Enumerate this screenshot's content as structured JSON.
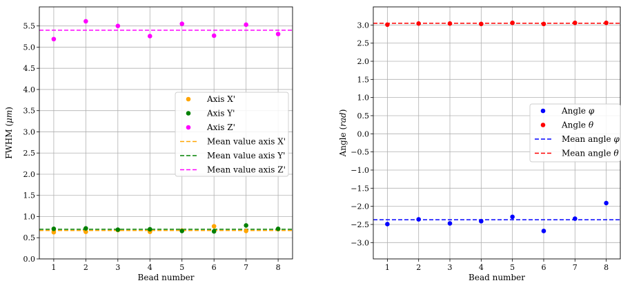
{
  "chart_data": [
    {
      "type": "scatter",
      "xlabel": "Bead number",
      "ylabel_prefix": "FWHM (",
      "ylabel_unit": "μm",
      "ylabel_suffix": ")",
      "x": [
        1,
        2,
        3,
        4,
        5,
        6,
        7,
        8
      ],
      "xticks": [
        "1",
        "2",
        "3",
        "4",
        "5",
        "6",
        "7",
        "8"
      ],
      "xlim": [
        0.55,
        8.45
      ],
      "ylim": [
        0.0,
        5.95
      ],
      "yticks": [
        "0.0",
        "0.5",
        "1.0",
        "1.5",
        "2.0",
        "2.5",
        "3.0",
        "3.5",
        "4.0",
        "4.5",
        "5.0",
        "5.5"
      ],
      "grid": true,
      "legend_position": "center-right",
      "series": [
        {
          "name": "Axis X'",
          "color": "#ffa500",
          "values": [
            0.63,
            0.64,
            0.68,
            0.64,
            0.67,
            0.77,
            0.66,
            0.7
          ]
        },
        {
          "name": "Axis Y'",
          "color": "#008000",
          "values": [
            0.71,
            0.72,
            0.69,
            0.7,
            0.66,
            0.65,
            0.79,
            0.71
          ]
        },
        {
          "name": "Axis Z'",
          "color": "#ff00ff",
          "values": [
            5.19,
            5.61,
            5.5,
            5.26,
            5.55,
            5.27,
            5.53,
            5.31
          ]
        }
      ],
      "mean_lines": [
        {
          "name": "Mean value axis X'",
          "color": "#ffa500",
          "value": 0.67
        },
        {
          "name": "Mean value axis Y'",
          "color": "#008000",
          "value": 0.7
        },
        {
          "name": "Mean value axis Z'",
          "color": "#ff00ff",
          "value": 5.4
        }
      ]
    },
    {
      "type": "scatter",
      "xlabel": "Bead number",
      "ylabel_prefix": "Angle (",
      "ylabel_unit": "rad",
      "ylabel_suffix": ")",
      "x": [
        1,
        2,
        3,
        4,
        5,
        6,
        7,
        8
      ],
      "xticks": [
        "1",
        "2",
        "3",
        "4",
        "5",
        "6",
        "7",
        "8"
      ],
      "xlim": [
        0.55,
        8.45
      ],
      "ylim": [
        -3.45,
        3.5
      ],
      "yticks": [
        "−3.0",
        "−2.5",
        "−2.0",
        "−1.5",
        "−1.0",
        "−0.5",
        "0.0",
        "0.5",
        "1.0",
        "1.5",
        "2.0",
        "2.5",
        "3.0"
      ],
      "ytick_values": [
        -3.0,
        -2.5,
        -2.0,
        -1.5,
        -1.0,
        -0.5,
        0.0,
        0.5,
        1.0,
        1.5,
        2.0,
        2.5,
        3.0
      ],
      "grid": true,
      "legend_position": "center-right",
      "series": [
        {
          "name_prefix": "Angle ",
          "name_symbol": "φ",
          "color": "#0000ff",
          "values": [
            -2.49,
            -2.36,
            -2.47,
            -2.41,
            -2.29,
            -2.68,
            -2.34,
            -1.91
          ]
        },
        {
          "name_prefix": "Angle ",
          "name_symbol": "θ",
          "color": "#ff0000",
          "values": [
            3.01,
            3.04,
            3.04,
            3.03,
            3.06,
            3.03,
            3.06,
            3.06
          ]
        }
      ],
      "mean_lines": [
        {
          "name_prefix": "Mean angle ",
          "name_symbol": "φ",
          "color": "#0000ff",
          "value": -2.37
        },
        {
          "name_prefix": "Mean angle ",
          "name_symbol": "θ",
          "color": "#ff0000",
          "value": 3.05
        }
      ]
    }
  ]
}
